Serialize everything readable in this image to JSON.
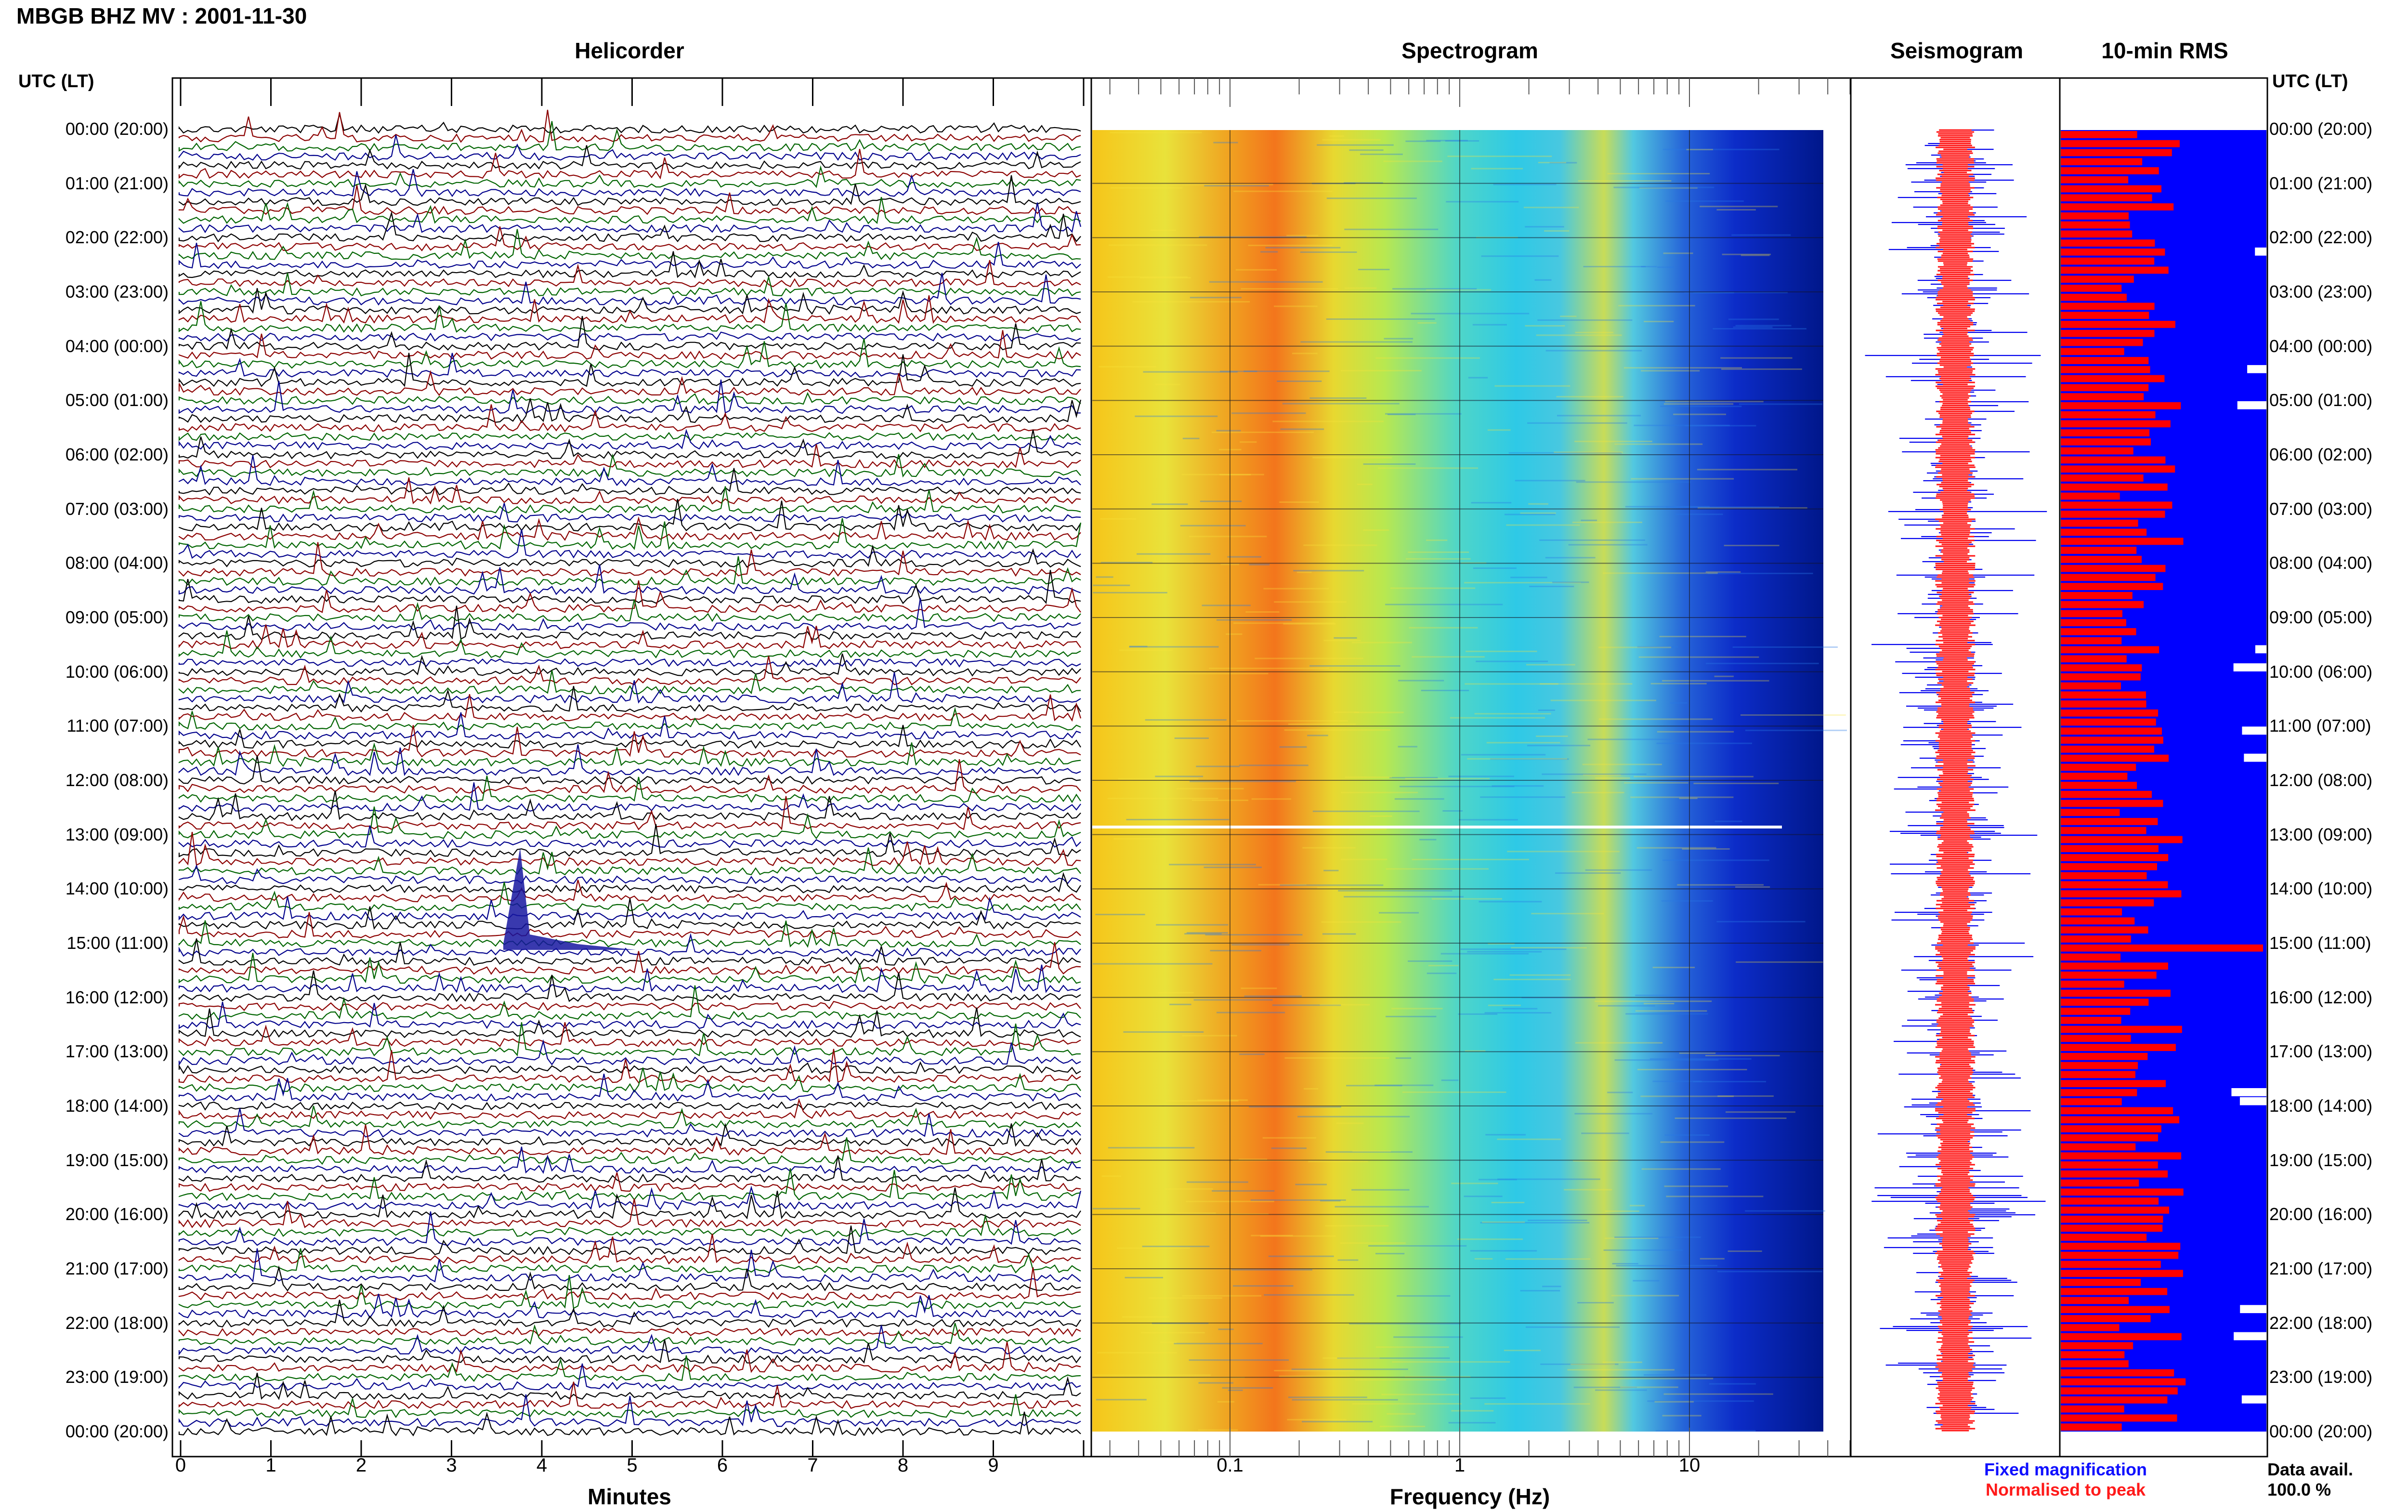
{
  "header": {
    "title": "MBGB BHZ MV : 2001-11-30",
    "left_axis_label": "UTC (LT)",
    "right_axis_label": "UTC (LT)"
  },
  "panels": {
    "helicorder": "Helicorder",
    "spectrogram": "Spectrogram",
    "seismogram": "Seismogram",
    "rms": "10-min RMS"
  },
  "time_labels": [
    "00:00 (20:00)",
    "01:00 (21:00)",
    "02:00 (22:00)",
    "03:00 (23:00)",
    "04:00 (00:00)",
    "05:00 (01:00)",
    "06:00 (02:00)",
    "07:00 (03:00)",
    "08:00 (04:00)",
    "09:00 (05:00)",
    "10:00 (06:00)",
    "11:00 (07:00)",
    "12:00 (08:00)",
    "13:00 (09:00)",
    "14:00 (10:00)",
    "15:00 (11:00)",
    "16:00 (12:00)",
    "17:00 (13:00)",
    "18:00 (14:00)",
    "19:00 (15:00)",
    "20:00 (16:00)",
    "21:00 (17:00)",
    "22:00 (18:00)",
    "23:00 (19:00)",
    "00:00 (20:00)"
  ],
  "helicorder_axis": {
    "ticks": [
      "0",
      "1",
      "2",
      "3",
      "4",
      "5",
      "6",
      "7",
      "8",
      "9"
    ],
    "label": "Minutes"
  },
  "spectrogram_axis": {
    "ticks": [
      "0.1",
      "1",
      "10"
    ],
    "label": "Frequency (Hz)"
  },
  "legend": {
    "fixed": "Fixed magnification",
    "normalised": "Normalised to peak",
    "data_avail_label": "Data avail.",
    "data_avail_value": "100.0 %"
  },
  "colors": {
    "trace_cycle": [
      "#000000",
      "#8b0000",
      "#006400",
      "#00008b"
    ],
    "fixed": "#0000ff",
    "normalised": "#ff0000",
    "rms_bg": "#0000ff",
    "rms_bar": "#ff0000"
  }
}
